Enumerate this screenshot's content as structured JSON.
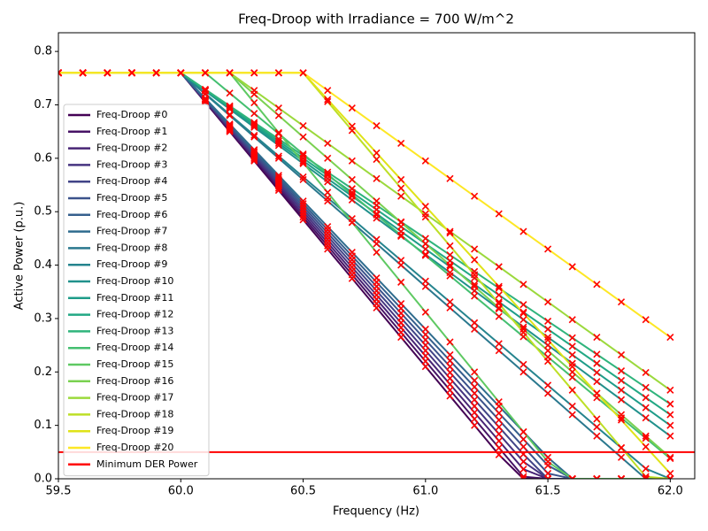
{
  "chart_data": {
    "type": "line",
    "title": "Freq-Droop with Irradiance = 700 W/m^2",
    "x_label": "Frequency (Hz)",
    "y_label": "Active Power (p.u.)",
    "xlim": [
      59.5,
      62.1
    ],
    "ylim": [
      0,
      0.835
    ],
    "xticks": [
      {
        "value": 59.5,
        "label": "59.5"
      },
      {
        "value": 60,
        "label": "60.0"
      },
      {
        "value": 60.5,
        "label": "60.5"
      },
      {
        "value": 61,
        "label": "61.0"
      },
      {
        "value": 61.5,
        "label": "61.5"
      },
      {
        "value": 62,
        "label": "62.0"
      }
    ],
    "yticks": [
      {
        "value": 0,
        "label": "0.0"
      },
      {
        "value": 0.1,
        "label": "0.1"
      },
      {
        "value": 0.2,
        "label": "0.2"
      },
      {
        "value": 0.3,
        "label": "0.3"
      },
      {
        "value": 0.4,
        "label": "0.4"
      },
      {
        "value": 0.5,
        "label": "0.5"
      },
      {
        "value": 0.6,
        "label": "0.6"
      },
      {
        "value": 0.7,
        "label": "0.7"
      },
      {
        "value": 0.8,
        "label": "0.8"
      }
    ],
    "marker_color": "#ff0000",
    "x": [
      59.5,
      59.6,
      59.7,
      59.8,
      59.9,
      60,
      60.1,
      60.2,
      60.3,
      60.4,
      60.5,
      60.6,
      60.7,
      60.8,
      60.9,
      61,
      61.1,
      61.2,
      61.3,
      61.4,
      61.5,
      61.6,
      61.7,
      61.8,
      61.9,
      62
    ],
    "series": [
      {
        "name": "Freq-Droop #0",
        "color": "#440154",
        "values": [
          0.76,
          0.76,
          0.76,
          0.76,
          0.76,
          0.76,
          0.705,
          0.65,
          0.595,
          0.54,
          0.485,
          0.43,
          0.375,
          0.32,
          0.265,
          0.21,
          0.155,
          0.1,
          0.045,
          0,
          0,
          0,
          0,
          0,
          0,
          0
        ]
      },
      {
        "name": "Freq-Droop #1",
        "color": "#471365",
        "values": [
          0.76,
          0.76,
          0.76,
          0.76,
          0.76,
          0.76,
          0.706,
          0.652,
          0.598,
          0.544,
          0.49,
          0.436,
          0.382,
          0.328,
          0.274,
          0.22,
          0.166,
          0.112,
          0.058,
          0.004,
          0,
          0,
          0,
          0,
          0,
          0
        ]
      },
      {
        "name": "Freq-Droop #2",
        "color": "#482475",
        "values": [
          0.76,
          0.76,
          0.76,
          0.76,
          0.76,
          0.76,
          0.707,
          0.654,
          0.601,
          0.548,
          0.495,
          0.442,
          0.389,
          0.336,
          0.283,
          0.23,
          0.177,
          0.124,
          0.071,
          0.018,
          0,
          0,
          0,
          0,
          0,
          0
        ]
      },
      {
        "name": "Freq-Droop #3",
        "color": "#463480",
        "values": [
          0.76,
          0.76,
          0.76,
          0.76,
          0.76,
          0.76,
          0.708,
          0.656,
          0.604,
          0.552,
          0.5,
          0.448,
          0.396,
          0.344,
          0.292,
          0.24,
          0.188,
          0.136,
          0.084,
          0.032,
          0,
          0,
          0,
          0,
          0,
          0
        ]
      },
      {
        "name": "Freq-Droop #4",
        "color": "#414487",
        "values": [
          0.76,
          0.76,
          0.76,
          0.76,
          0.76,
          0.76,
          0.709,
          0.658,
          0.607,
          0.556,
          0.505,
          0.454,
          0.403,
          0.352,
          0.301,
          0.25,
          0.199,
          0.148,
          0.097,
          0.046,
          0,
          0,
          0,
          0,
          0,
          0
        ]
      },
      {
        "name": "Freq-Droop #5",
        "color": "#3b528b",
        "values": [
          0.76,
          0.76,
          0.76,
          0.76,
          0.76,
          0.76,
          0.71,
          0.66,
          0.61,
          0.56,
          0.51,
          0.46,
          0.41,
          0.36,
          0.31,
          0.26,
          0.21,
          0.16,
          0.11,
          0.06,
          0.01,
          0,
          0,
          0,
          0,
          0
        ]
      },
      {
        "name": "Freq-Droop #6",
        "color": "#355f8d",
        "values": [
          0.76,
          0.76,
          0.76,
          0.76,
          0.76,
          0.76,
          0.711,
          0.662,
          0.613,
          0.564,
          0.515,
          0.466,
          0.417,
          0.368,
          0.319,
          0.27,
          0.221,
          0.172,
          0.123,
          0.074,
          0.025,
          0,
          0,
          0,
          0,
          0
        ]
      },
      {
        "name": "Freq-Droop #7",
        "color": "#2f6c8e",
        "values": [
          0.76,
          0.76,
          0.76,
          0.76,
          0.76,
          0.76,
          0.712,
          0.664,
          0.616,
          0.568,
          0.52,
          0.472,
          0.424,
          0.376,
          0.328,
          0.28,
          0.232,
          0.184,
          0.136,
          0.088,
          0.04,
          0,
          0,
          0,
          0,
          0
        ]
      },
      {
        "name": "Freq-Droop #8",
        "color": "#2a788e",
        "values": [
          0.76,
          0.76,
          0.76,
          0.76,
          0.76,
          0.76,
          0.72,
          0.68,
          0.64,
          0.6,
          0.56,
          0.52,
          0.48,
          0.44,
          0.4,
          0.36,
          0.32,
          0.28,
          0.24,
          0.2,
          0.16,
          0.12,
          0.08,
          0.04,
          0,
          0
        ]
      },
      {
        "name": "Freq-Droop #9",
        "color": "#25848e",
        "values": [
          0.76,
          0.76,
          0.76,
          0.76,
          0.76,
          0.76,
          0.721,
          0.682,
          0.643,
          0.604,
          0.565,
          0.526,
          0.487,
          0.448,
          0.409,
          0.37,
          0.331,
          0.292,
          0.253,
          0.214,
          0.175,
          0.136,
          0.097,
          0.058,
          0.019,
          0
        ]
      },
      {
        "name": "Freq-Droop #10",
        "color": "#21918c",
        "values": [
          0.76,
          0.76,
          0.76,
          0.76,
          0.76,
          0.76,
          0.726,
          0.692,
          0.658,
          0.624,
          0.59,
          0.556,
          0.522,
          0.488,
          0.454,
          0.42,
          0.386,
          0.352,
          0.318,
          0.284,
          0.25,
          0.216,
          0.182,
          0.148,
          0.114,
          0.08
        ]
      },
      {
        "name": "Freq-Droop #11",
        "color": "#1e9c89",
        "values": [
          0.76,
          0.76,
          0.76,
          0.76,
          0.76,
          0.76,
          0.727,
          0.694,
          0.661,
          0.628,
          0.595,
          0.562,
          0.529,
          0.496,
          0.463,
          0.43,
          0.397,
          0.364,
          0.331,
          0.298,
          0.265,
          0.232,
          0.199,
          0.166,
          0.133,
          0.1
        ]
      },
      {
        "name": "Freq-Droop #12",
        "color": "#22a884",
        "values": [
          0.76,
          0.76,
          0.76,
          0.76,
          0.76,
          0.76,
          0.728,
          0.696,
          0.664,
          0.632,
          0.6,
          0.568,
          0.536,
          0.504,
          0.472,
          0.44,
          0.408,
          0.376,
          0.344,
          0.312,
          0.28,
          0.248,
          0.216,
          0.184,
          0.152,
          0.12
        ]
      },
      {
        "name": "Freq-Droop #13",
        "color": "#2fb47c",
        "values": [
          0.76,
          0.76,
          0.76,
          0.76,
          0.76,
          0.76,
          0.729,
          0.698,
          0.667,
          0.636,
          0.605,
          0.574,
          0.543,
          0.512,
          0.481,
          0.45,
          0.419,
          0.388,
          0.357,
          0.326,
          0.295,
          0.264,
          0.233,
          0.202,
          0.171,
          0.14
        ]
      },
      {
        "name": "Freq-Droop #14",
        "color": "#44bf70",
        "values": [
          0.76,
          0.76,
          0.76,
          0.76,
          0.76,
          0.76,
          0.76,
          0.722,
          0.684,
          0.646,
          0.608,
          0.57,
          0.532,
          0.494,
          0.456,
          0.418,
          0.38,
          0.342,
          0.304,
          0.266,
          0.228,
          0.19,
          0.152,
          0.114,
          0.076,
          0.038
        ]
      },
      {
        "name": "Freq-Droop #15",
        "color": "#5ec962",
        "values": [
          0.76,
          0.76,
          0.76,
          0.76,
          0.76,
          0.76,
          0.76,
          0.76,
          0.704,
          0.648,
          0.592,
          0.536,
          0.48,
          0.424,
          0.368,
          0.312,
          0.256,
          0.2,
          0.144,
          0.088,
          0.032,
          0,
          0,
          0,
          0,
          0
        ]
      },
      {
        "name": "Freq-Droop #16",
        "color": "#7ad151",
        "values": [
          0.76,
          0.76,
          0.76,
          0.76,
          0.76,
          0.76,
          0.76,
          0.76,
          0.72,
          0.68,
          0.64,
          0.6,
          0.56,
          0.52,
          0.48,
          0.44,
          0.4,
          0.36,
          0.32,
          0.28,
          0.24,
          0.2,
          0.16,
          0.12,
          0.08,
          0.04
        ]
      },
      {
        "name": "Freq-Droop #17",
        "color": "#9bd93c",
        "values": [
          0.76,
          0.76,
          0.76,
          0.76,
          0.76,
          0.76,
          0.76,
          0.76,
          0.727,
          0.694,
          0.661,
          0.628,
          0.595,
          0.562,
          0.529,
          0.496,
          0.463,
          0.43,
          0.397,
          0.364,
          0.331,
          0.298,
          0.265,
          0.232,
          0.199,
          0.166
        ]
      },
      {
        "name": "Freq-Droop #18",
        "color": "#bddf26",
        "values": [
          0.76,
          0.76,
          0.76,
          0.76,
          0.76,
          0.76,
          0.76,
          0.76,
          0.76,
          0.76,
          0.76,
          0.706,
          0.652,
          0.598,
          0.544,
          0.49,
          0.436,
          0.382,
          0.328,
          0.274,
          0.22,
          0.166,
          0.112,
          0.058,
          0.004,
          0
        ]
      },
      {
        "name": "Freq-Droop #19",
        "color": "#dfe318",
        "values": [
          0.76,
          0.76,
          0.76,
          0.76,
          0.76,
          0.76,
          0.76,
          0.76,
          0.76,
          0.76,
          0.76,
          0.71,
          0.66,
          0.61,
          0.56,
          0.51,
          0.46,
          0.41,
          0.36,
          0.31,
          0.26,
          0.21,
          0.16,
          0.11,
          0.06,
          0.01
        ]
      },
      {
        "name": "Freq-Droop #20",
        "color": "#fde725",
        "values": [
          0.76,
          0.76,
          0.76,
          0.76,
          0.76,
          0.76,
          0.76,
          0.76,
          0.76,
          0.76,
          0.76,
          0.727,
          0.694,
          0.661,
          0.628,
          0.595,
          0.562,
          0.529,
          0.496,
          0.463,
          0.43,
          0.397,
          0.364,
          0.331,
          0.298,
          0.265
        ]
      }
    ],
    "hline": {
      "name": "Minimum DER Power",
      "color": "#ff0000",
      "value": 0.05
    }
  }
}
